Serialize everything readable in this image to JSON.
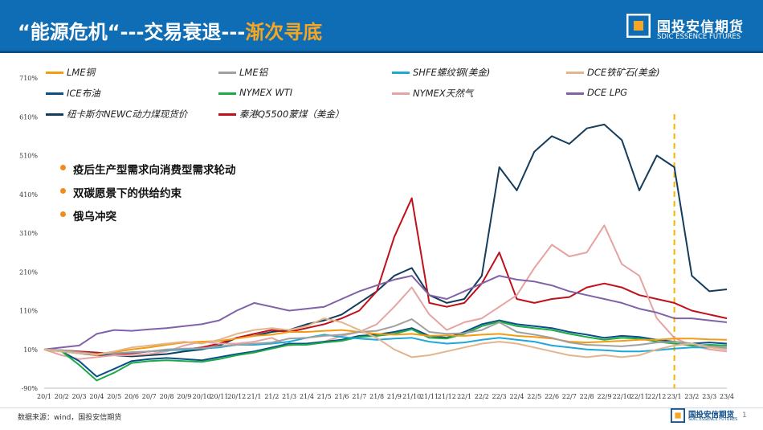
{
  "header": {
    "title_main": "“能源危机“---交易衰退---",
    "title_highlight": "渐次寻底",
    "logo_cn": "国投安信期货",
    "logo_en": "SDIC ESSENCE FUTURES"
  },
  "footer": {
    "source": "数据来源：wind，国投安信期货",
    "logo_cn": "国投安信期货",
    "logo_en": "SDIC ESSENCE FUTURES",
    "page": "1"
  },
  "bullets": [
    "疫后生产型需求向消费型需求轮动",
    "双碳愿景下的供给约束",
    "俄乌冲突"
  ],
  "colors": {
    "header_bg": "#0e6db5",
    "highlight": "#f5a623",
    "bullet_dot": "#f08c1a",
    "marker_line": "#f5b400"
  },
  "chart_data": {
    "type": "line",
    "ytick_labels": [
      "710%",
      "610%",
      "510%",
      "410%",
      "310%",
      "210%",
      "110%",
      "10%",
      "-90%"
    ],
    "yticks": [
      710,
      610,
      510,
      410,
      310,
      210,
      110,
      10,
      -90
    ],
    "ylim": [
      -90,
      710
    ],
    "xtick_labels": [
      "20/1",
      "20/2",
      "20/3",
      "20/4",
      "20/5",
      "20/6",
      "20/7",
      "20/8",
      "20/9",
      "20/10",
      "20/11",
      "20/12",
      "21/1",
      "21/2",
      "21/3",
      "21/4",
      "21/5",
      "21/6",
      "21/7",
      "21/8",
      "21/9",
      "21/10",
      "21/11",
      "21/12",
      "22/1",
      "22/2",
      "22/3",
      "22/4",
      "22/5",
      "22/6",
      "22/7",
      "22/8",
      "22/9",
      "22/10",
      "22/11",
      "22/12",
      "23/1",
      "23/2",
      "23/3",
      "23/4"
    ],
    "x_marker": "23/1",
    "grid": false,
    "legend": "top",
    "series": [
      {
        "name": "LME铜",
        "color": "#f39c12",
        "values": [
          10,
          8,
          2,
          -5,
          3,
          10,
          15,
          22,
          28,
          30,
          32,
          38,
          45,
          48,
          55,
          55,
          58,
          60,
          55,
          50,
          48,
          50,
          45,
          46,
          45,
          48,
          50,
          45,
          42,
          38,
          30,
          28,
          30,
          32,
          35,
          35,
          38,
          38,
          36,
          35
        ]
      },
      {
        "name": "LME铝",
        "color": "#a0a0a0",
        "values": [
          10,
          8,
          3,
          -2,
          0,
          3,
          5,
          10,
          12,
          13,
          18,
          22,
          25,
          28,
          38,
          40,
          45,
          48,
          55,
          58,
          70,
          88,
          55,
          50,
          52,
          60,
          80,
          55,
          48,
          40,
          28,
          22,
          20,
          18,
          22,
          28,
          30,
          25,
          18,
          15
        ]
      },
      {
        "name": "SHFE螺纹钢(美金)",
        "color": "#1fa9d6",
        "values": [
          10,
          7,
          2,
          -2,
          0,
          2,
          5,
          8,
          9,
          12,
          15,
          22,
          22,
          25,
          30,
          40,
          48,
          42,
          38,
          35,
          38,
          40,
          30,
          25,
          28,
          35,
          40,
          35,
          30,
          20,
          15,
          10,
          8,
          5,
          5,
          8,
          12,
          15,
          15,
          14
        ]
      },
      {
        "name": "DCE铁矿石(美金)",
        "color": "#e3b58d",
        "values": [
          10,
          5,
          0,
          -3,
          5,
          15,
          20,
          25,
          30,
          25,
          35,
          50,
          60,
          65,
          60,
          70,
          90,
          80,
          60,
          40,
          10,
          -10,
          -5,
          5,
          15,
          25,
          30,
          25,
          15,
          5,
          -5,
          -10,
          -5,
          -10,
          -5,
          10,
          20,
          25,
          15,
          10
        ]
      },
      {
        "name": "ICE布油",
        "color": "#0a4f86",
        "values": [
          10,
          5,
          -20,
          -60,
          -40,
          -20,
          -15,
          -12,
          -15,
          -18,
          -10,
          -2,
          5,
          15,
          25,
          25,
          30,
          35,
          45,
          48,
          55,
          65,
          45,
          40,
          55,
          75,
          85,
          75,
          70,
          65,
          55,
          48,
          40,
          45,
          42,
          35,
          30,
          25,
          28,
          25
        ]
      },
      {
        "name": "NYMEX WTI",
        "color": "#1faa4a",
        "values": [
          10,
          5,
          -30,
          -70,
          -50,
          -25,
          -20,
          -18,
          -20,
          -22,
          -15,
          -5,
          2,
          12,
          22,
          22,
          28,
          32,
          42,
          45,
          50,
          62,
          40,
          38,
          50,
          70,
          82,
          70,
          65,
          60,
          50,
          42,
          35,
          40,
          38,
          30,
          25,
          20,
          22,
          20
        ]
      },
      {
        "name": "NYMEX天然气",
        "color": "#e6a3a3",
        "values": [
          10,
          -5,
          -15,
          -10,
          -5,
          -5,
          -2,
          5,
          20,
          30,
          25,
          25,
          30,
          40,
          20,
          25,
          30,
          45,
          55,
          75,
          120,
          170,
          100,
          60,
          80,
          90,
          120,
          150,
          220,
          280,
          250,
          260,
          330,
          230,
          200,
          90,
          40,
          20,
          10,
          5
        ]
      },
      {
        "name": "DCE LPG",
        "color": "#8062a8",
        "values": [
          10,
          15,
          20,
          50,
          60,
          58,
          62,
          65,
          70,
          75,
          85,
          110,
          130,
          120,
          110,
          115,
          120,
          140,
          160,
          175,
          190,
          200,
          150,
          140,
          160,
          180,
          200,
          190,
          185,
          175,
          160,
          150,
          140,
          130,
          115,
          105,
          90,
          90,
          85,
          80
        ]
      },
      {
        "name": "纽卡斯尔NEWC动力煤现货价",
        "color": "#143c5c",
        "values": [
          10,
          5,
          0,
          -5,
          -5,
          -8,
          -5,
          -2,
          5,
          10,
          20,
          40,
          45,
          55,
          60,
          75,
          85,
          100,
          130,
          160,
          200,
          220,
          150,
          130,
          140,
          200,
          480,
          420,
          520,
          560,
          540,
          580,
          590,
          550,
          420,
          510,
          480,
          200,
          160,
          165
        ]
      },
      {
        "name": "秦港Q5500蒙煤（美金）",
        "color": "#c0111a",
        "values": [
          10,
          8,
          5,
          2,
          -2,
          0,
          5,
          8,
          10,
          15,
          25,
          40,
          50,
          60,
          55,
          65,
          75,
          90,
          110,
          160,
          300,
          400,
          130,
          120,
          130,
          180,
          260,
          140,
          130,
          140,
          145,
          170,
          180,
          170,
          150,
          140,
          130,
          110,
          100,
          90
        ]
      }
    ]
  }
}
